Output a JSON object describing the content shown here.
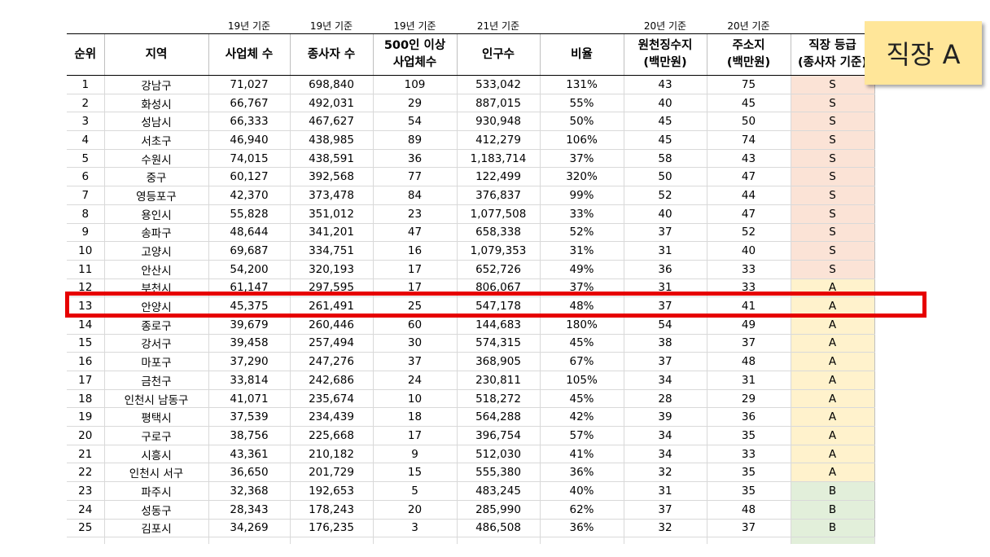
{
  "basis_row": [
    "",
    "",
    "19년 기준",
    "19년 기준",
    "19년 기준",
    "21년 기준",
    "",
    "20년 기준",
    "20년 기준",
    ""
  ],
  "headers": [
    "순위",
    "지역",
    "사업체 수",
    "종사자 수",
    "500인 이상\n사업체수",
    "인구수",
    "비율",
    "원천징수지\n(백만원)",
    "주소지\n(백만원)",
    "직장 등급\n(종사자 기준)"
  ],
  "rows": [
    [
      "1",
      "강남구",
      "71,027",
      "698,840",
      "109",
      "533,042",
      "131%",
      "43",
      "75",
      "S"
    ],
    [
      "2",
      "화성시",
      "66,767",
      "492,031",
      "29",
      "887,015",
      "55%",
      "40",
      "45",
      "S"
    ],
    [
      "3",
      "성남시",
      "66,333",
      "467,627",
      "54",
      "930,948",
      "50%",
      "45",
      "50",
      "S"
    ],
    [
      "4",
      "서초구",
      "46,940",
      "438,985",
      "89",
      "412,279",
      "106%",
      "45",
      "74",
      "S"
    ],
    [
      "5",
      "수원시",
      "74,015",
      "438,591",
      "36",
      "1,183,714",
      "37%",
      "58",
      "43",
      "S"
    ],
    [
      "6",
      "중구",
      "60,127",
      "392,568",
      "77",
      "122,499",
      "320%",
      "50",
      "47",
      "S"
    ],
    [
      "7",
      "영등포구",
      "42,370",
      "373,478",
      "84",
      "376,837",
      "99%",
      "52",
      "44",
      "S"
    ],
    [
      "8",
      "용인시",
      "55,828",
      "351,012",
      "23",
      "1,077,508",
      "33%",
      "40",
      "47",
      "S"
    ],
    [
      "9",
      "송파구",
      "48,644",
      "341,201",
      "47",
      "658,338",
      "52%",
      "37",
      "52",
      "S"
    ],
    [
      "10",
      "고양시",
      "69,687",
      "334,751",
      "16",
      "1,079,353",
      "31%",
      "31",
      "40",
      "S"
    ],
    [
      "11",
      "안산시",
      "54,200",
      "320,193",
      "17",
      "652,726",
      "49%",
      "36",
      "33",
      "S"
    ],
    [
      "12",
      "부천시",
      "61,147",
      "297,595",
      "17",
      "806,067",
      "37%",
      "31",
      "33",
      "A"
    ],
    [
      "13",
      "안양시",
      "45,375",
      "261,491",
      "25",
      "547,178",
      "48%",
      "37",
      "41",
      "A"
    ],
    [
      "14",
      "종로구",
      "39,679",
      "260,446",
      "60",
      "144,683",
      "180%",
      "54",
      "49",
      "A"
    ],
    [
      "15",
      "강서구",
      "39,458",
      "257,494",
      "30",
      "574,315",
      "45%",
      "38",
      "37",
      "A"
    ],
    [
      "16",
      "마포구",
      "37,290",
      "247,276",
      "37",
      "368,905",
      "67%",
      "37",
      "48",
      "A"
    ],
    [
      "17",
      "금천구",
      "33,814",
      "242,686",
      "24",
      "230,811",
      "105%",
      "34",
      "31",
      "A"
    ],
    [
      "18",
      "인천시 남동구",
      "41,071",
      "235,674",
      "10",
      "518,272",
      "45%",
      "28",
      "29",
      "A"
    ],
    [
      "19",
      "평택시",
      "37,539",
      "234,439",
      "18",
      "564,288",
      "42%",
      "39",
      "36",
      "A"
    ],
    [
      "20",
      "구로구",
      "38,756",
      "225,668",
      "17",
      "396,754",
      "57%",
      "34",
      "35",
      "A"
    ],
    [
      "21",
      "시흥시",
      "43,361",
      "210,182",
      "9",
      "512,030",
      "41%",
      "34",
      "33",
      "A"
    ],
    [
      "22",
      "인천시 서구",
      "36,650",
      "201,729",
      "15",
      "555,380",
      "36%",
      "32",
      "35",
      "A"
    ],
    [
      "23",
      "파주시",
      "32,368",
      "192,653",
      "5",
      "483,245",
      "40%",
      "31",
      "35",
      "B"
    ],
    [
      "24",
      "성동구",
      "28,343",
      "178,243",
      "20",
      "285,990",
      "62%",
      "37",
      "48",
      "B"
    ],
    [
      "25",
      "김포시",
      "34,269",
      "176,235",
      "3",
      "486,508",
      "36%",
      "32",
      "37",
      "B"
    ]
  ],
  "highlighted_rank": "13",
  "colors": {
    "highlight_border": "#e60000",
    "grade_S": "#fbe3d6",
    "grade_A": "#fff2cc",
    "grade_B": "#e2efda",
    "note_background": "#ffe699"
  },
  "tier_note": "직장 A"
}
